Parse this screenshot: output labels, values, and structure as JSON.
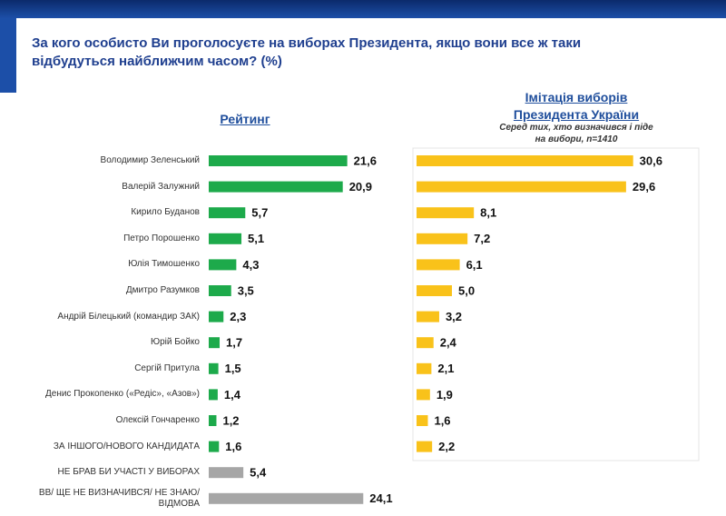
{
  "title": "За кого особисто Ви проголосуєте на виборах Президента, якщо вони все ж таки відбудуться найближчим часом? (%)",
  "chart_data": [
    {
      "type": "bar",
      "title": "Рейтинг",
      "categories": [
        "Володимир Зеленський",
        "Валерій Залужний",
        "Кирило Буданов",
        "Петро Порошенко",
        "Юлія Тимошенко",
        "Дмитро Разумков",
        "Андрій Білецький (командир ЗАК)",
        "Юрій Бойко",
        "Сергій Притула",
        "Денис Прокопенко («Редіс», «Азов»)",
        "Олексій Гончаренко",
        "ЗА ІНШОГО/НОВОГО КАНДИДАТА",
        "НЕ БРАВ БИ УЧАСТІ У ВИБОРАХ",
        "ВВ/ ЩЕ НЕ ВИЗНАЧИВСЯ/ НЕ ЗНАЮ/ ВІДМОВА"
      ],
      "values": [
        21.6,
        20.9,
        5.7,
        5.1,
        4.3,
        3.5,
        2.3,
        1.7,
        1.5,
        1.4,
        1.2,
        1.6,
        5.4,
        24.1
      ],
      "value_labels": [
        "21,6",
        "20,9",
        "5,7",
        "5,1",
        "4,3",
        "3,5",
        "2,3",
        "1,7",
        "1,5",
        "1,4",
        "1,2",
        "1,6",
        "5,4",
        "24,1"
      ],
      "colors": [
        "#1daa4b",
        "#1daa4b",
        "#1daa4b",
        "#1daa4b",
        "#1daa4b",
        "#1daa4b",
        "#1daa4b",
        "#1daa4b",
        "#1daa4b",
        "#1daa4b",
        "#1daa4b",
        "#1daa4b",
        "#a6a6a6",
        "#a6a6a6"
      ],
      "xlim": [
        0,
        30
      ]
    },
    {
      "type": "bar",
      "title": "Імітація виборів Президента України",
      "subtitle": "Серед тих, хто визначився і піде на вибори, n=1410",
      "values": [
        30.6,
        29.6,
        8.1,
        7.2,
        6.1,
        5.0,
        3.2,
        2.4,
        2.1,
        1.9,
        1.6,
        2.2
      ],
      "value_labels": [
        "30,6",
        "29,6",
        "8,1",
        "7,2",
        "6,1",
        "5,0",
        "3,2",
        "2,4",
        "2,1",
        "1,9",
        "1,6",
        "2,2"
      ],
      "color": "#f9c21a",
      "xlim": [
        0,
        40
      ]
    }
  ]
}
